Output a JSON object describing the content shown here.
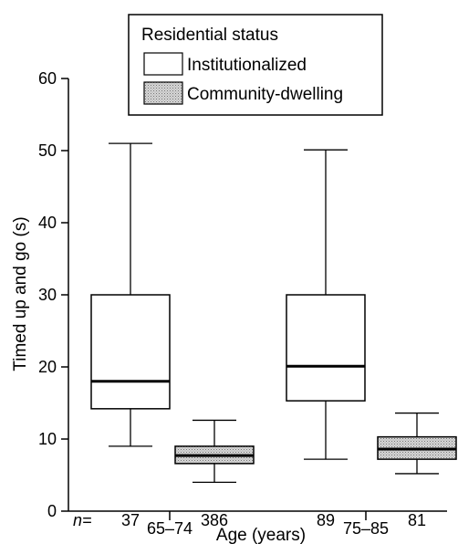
{
  "chart_data": {
    "type": "boxplot",
    "title": "",
    "xlabel": "Age (years)",
    "ylabel": "Timed up and go (s)",
    "ylim": [
      0,
      60
    ],
    "yticks": [
      0,
      10,
      20,
      30,
      40,
      50,
      60
    ],
    "n_prefix": "n=",
    "groups": [
      {
        "label": "65–74",
        "boxes": [
          {
            "series": "Institutionalized",
            "n": "37",
            "whisker_low": 9,
            "q1": 14.2,
            "median": 18,
            "q3": 30,
            "whisker_high": 51
          },
          {
            "series": "Community-dwelling",
            "n": "386",
            "whisker_low": 4,
            "q1": 6.6,
            "median": 7.7,
            "q3": 9,
            "whisker_high": 12.6
          }
        ]
      },
      {
        "label": "75–85",
        "boxes": [
          {
            "series": "Institutionalized",
            "n": "89",
            "whisker_low": 7.2,
            "q1": 15.3,
            "median": 20.1,
            "q3": 30,
            "whisker_high": 50.1
          },
          {
            "series": "Community-dwelling",
            "n": "81",
            "whisker_low": 5.2,
            "q1": 7.2,
            "median": 8.6,
            "q3": 10.3,
            "whisker_high": 13.6
          }
        ]
      }
    ],
    "legend": {
      "title": "Residential status",
      "placement": "top-right",
      "entries": [
        {
          "name": "Institutionalized",
          "fill": "#ffffff"
        },
        {
          "name": "Community-dwelling",
          "fill": "#c8c8c8"
        }
      ]
    },
    "grid": false
  }
}
